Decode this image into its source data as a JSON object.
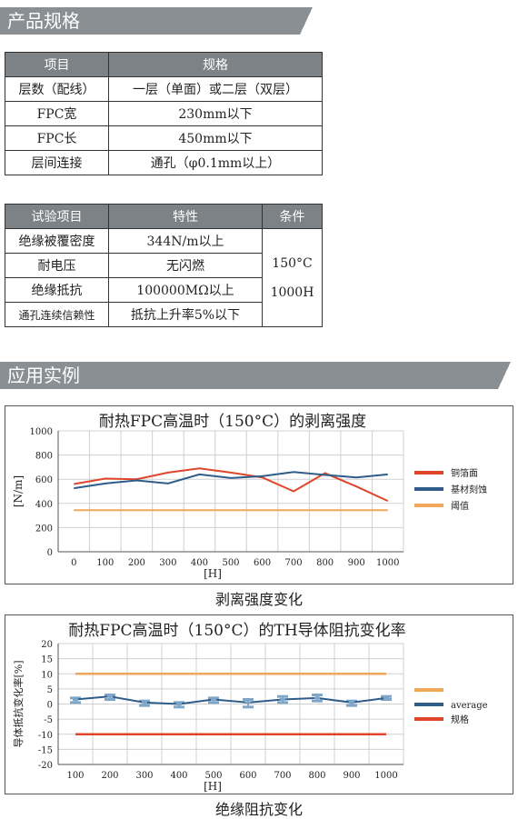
{
  "section1": {
    "title": "产品规格"
  },
  "table1": {
    "headers": [
      "项目",
      "规格"
    ],
    "rows": [
      [
        "层数（配线）",
        "一层（单面）或二层（双层）"
      ],
      [
        "FPC宽",
        "230mm以下"
      ],
      [
        "FPC长",
        "450mm以下"
      ],
      [
        "层间连接",
        "通孔（φ0.1mm以上）"
      ]
    ]
  },
  "table2": {
    "headers": [
      "试验项目",
      "特性",
      "条件"
    ],
    "rows": [
      [
        "绝缘被覆密度",
        "344N/m以上"
      ],
      [
        "耐电压",
        "无闪燃"
      ],
      [
        "绝缘抵抗",
        "100000MΩ以上"
      ],
      [
        "通孔连续信赖性",
        "抵抗上升率5%以下"
      ]
    ],
    "condition_temp": "150°C",
    "condition_time": "1000H"
  },
  "section2": {
    "title": "应用实例"
  },
  "chart1": {
    "title": "耐热FPC高温时（150°C）的剥离强度",
    "caption": "剥离强度变化"
  },
  "chart2": {
    "title": "耐热FPC高温时（150°C）的TH导体阻抗变化率",
    "caption": "绝缘阻抗变化"
  },
  "chart_data": [
    {
      "type": "line",
      "title": "耐热FPC高温时（150°C）的剥离强度",
      "xlabel": "[H]",
      "ylabel": "[N/m]",
      "x": [
        0,
        100,
        200,
        300,
        400,
        500,
        600,
        700,
        800,
        900,
        1000
      ],
      "ylim": [
        0,
        1000
      ],
      "yticks": [
        0,
        200,
        400,
        600,
        800,
        1000
      ],
      "grid": true,
      "legend_position": "right",
      "series": [
        {
          "name": "铜箔面",
          "color": "#e0452b",
          "values": [
            560,
            605,
            600,
            655,
            690,
            655,
            615,
            500,
            650,
            540,
            420
          ]
        },
        {
          "name": "基材刻蚀",
          "color": "#2f5d8a",
          "values": [
            525,
            565,
            590,
            565,
            640,
            610,
            625,
            660,
            635,
            615,
            640
          ]
        },
        {
          "name": "阈值",
          "color": "#f0a75a",
          "values": [
            344,
            344,
            344,
            344,
            344,
            344,
            344,
            344,
            344,
            344,
            344
          ]
        }
      ]
    },
    {
      "type": "line",
      "title": "耐热FPC高温时（150°C）的TH导体阻抗变化率",
      "xlabel": "[H]",
      "ylabel": "导体抵抗变化率[%]",
      "x": [
        100,
        200,
        300,
        400,
        500,
        600,
        700,
        800,
        900,
        1000
      ],
      "ylim": [
        -20,
        20
      ],
      "yticks": [
        -20,
        -15,
        -10,
        -5,
        0,
        5,
        10,
        15,
        20
      ],
      "grid": true,
      "legend_position": "right",
      "series": [
        {
          "name": "",
          "color": "#f0a75a",
          "values": [
            10,
            10,
            10,
            10,
            10,
            10,
            10,
            10,
            10,
            10
          ]
        },
        {
          "name": "average",
          "color": "#2f5d8a",
          "values": [
            1.5,
            2.5,
            0.5,
            0,
            1.5,
            0.5,
            1.5,
            2,
            0.5,
            2
          ]
        },
        {
          "name": "规格",
          "color": "#e0452b",
          "values": [
            -10,
            -10,
            -10,
            -10,
            -10,
            -10,
            -10,
            -10,
            -10,
            -10
          ]
        }
      ],
      "error_low": [
        0.5,
        1.5,
        -0.5,
        -1,
        0.5,
        -1,
        0.5,
        1,
        -0.5,
        1.5
      ],
      "error_high": [
        2,
        3,
        1,
        0.5,
        2,
        1.5,
        2.5,
        3,
        1,
        2.5
      ]
    }
  ]
}
